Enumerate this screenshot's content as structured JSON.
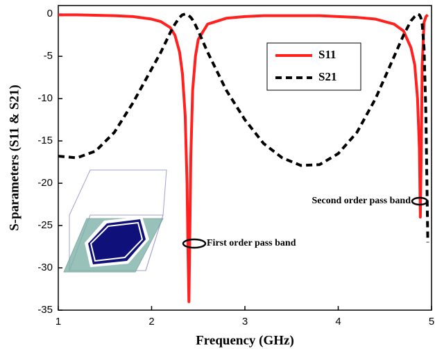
{
  "chart_data": {
    "type": "line",
    "xlabel": "Frequency (GHz)",
    "ylabel": "S-parameters (S11 & S21)",
    "x": [
      1,
      1.2,
      1.4,
      1.6,
      1.8,
      2.0,
      2.1,
      2.2,
      2.25,
      2.3,
      2.33,
      2.36,
      2.38,
      2.39,
      2.4,
      2.41,
      2.42,
      2.44,
      2.47,
      2.5,
      2.6,
      2.8,
      3.0,
      3.2,
      3.4,
      3.6,
      3.8,
      4.0,
      4.2,
      4.4,
      4.6,
      4.7,
      4.78,
      4.82,
      4.85,
      4.87,
      4.88,
      4.89,
      4.9,
      4.92,
      4.94,
      4.96
    ],
    "series": [
      {
        "name": "S11",
        "color": "#ff2020",
        "dash": "solid",
        "values": [
          -0.1,
          -0.1,
          -0.15,
          -0.2,
          -0.3,
          -0.6,
          -0.9,
          -1.6,
          -2.5,
          -4.5,
          -7,
          -12,
          -20,
          -28,
          -34,
          -26,
          -17,
          -9,
          -5,
          -3,
          -1.2,
          -0.5,
          -0.3,
          -0.2,
          -0.2,
          -0.2,
          -0.2,
          -0.3,
          -0.4,
          -0.6,
          -1.2,
          -2,
          -4,
          -6,
          -10,
          -16,
          -24,
          -16,
          -6,
          -1,
          -0.3,
          -0.1
        ]
      },
      {
        "name": "S21",
        "color": "#000000",
        "dash": "dashed",
        "values": [
          -16.8,
          -17,
          -16.2,
          -14,
          -10.5,
          -6.5,
          -4.5,
          -2.2,
          -1.2,
          -0.4,
          -0.1,
          0,
          -0.05,
          -0.1,
          -0.2,
          -0.3,
          -0.4,
          -0.7,
          -1.3,
          -2,
          -4.5,
          -9,
          -12.5,
          -15.3,
          -17,
          -17.9,
          -17.8,
          -16.5,
          -14,
          -10,
          -5,
          -2.5,
          -0.8,
          -0.3,
          0,
          -0.1,
          -0.3,
          -0.6,
          -1.2,
          -4,
          -12,
          -27
        ]
      }
    ],
    "xlim": [
      1,
      5
    ],
    "xticks": [
      1,
      2,
      3,
      4,
      5
    ],
    "ylim": [
      -35,
      1
    ],
    "yticks": [
      0,
      -5,
      -10,
      -15,
      -20,
      -25,
      -30,
      -35
    ],
    "legend": "upper right",
    "annotations": [
      "First order pass band",
      "Second order pass band"
    ]
  }
}
